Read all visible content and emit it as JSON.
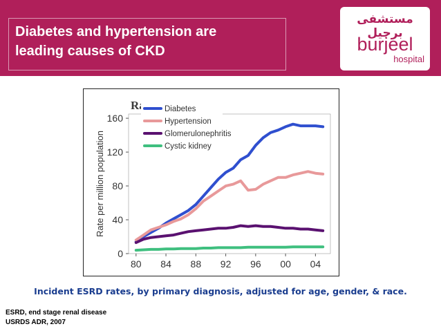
{
  "header": {
    "title_line1": "Diabetes and hypertension are",
    "title_line2": "leading causes of CKD",
    "logo_arabic": "مستشفى برجيل",
    "logo_name": "burjeel",
    "logo_sub": "hospital"
  },
  "chart_data": {
    "type": "line",
    "title": "Ra",
    "ylabel": "Rate per million population",
    "xlabel": "",
    "x_ticks": [
      "80",
      "84",
      "88",
      "92",
      "96",
      "00",
      "04"
    ],
    "y_ticks": [
      "0",
      "40",
      "80",
      "120",
      "160"
    ],
    "ylim": [
      0,
      165
    ],
    "xlim": [
      1979,
      2006
    ],
    "grid": false,
    "legend_position": "top-left",
    "x": [
      1980,
      1981,
      1982,
      1983,
      1984,
      1985,
      1986,
      1987,
      1988,
      1989,
      1990,
      1991,
      1992,
      1993,
      1994,
      1995,
      1996,
      1997,
      1998,
      1999,
      2000,
      2001,
      2002,
      2003,
      2004,
      2005
    ],
    "series": [
      {
        "name": "Diabetes",
        "color": "#2f4fcf",
        "values": [
          14,
          20,
          25,
          30,
          36,
          41,
          46,
          51,
          58,
          68,
          78,
          88,
          96,
          101,
          111,
          116,
          128,
          137,
          143,
          146,
          150,
          153,
          151,
          151,
          151,
          150
        ]
      },
      {
        "name": "Hypertension",
        "color": "#e8999a",
        "values": [
          16,
          22,
          28,
          31,
          34,
          38,
          41,
          46,
          53,
          62,
          68,
          74,
          80,
          82,
          86,
          75,
          76,
          82,
          86,
          90,
          90,
          93,
          95,
          97,
          95,
          94
        ]
      },
      {
        "name": "Glomerulonephritis",
        "color": "#5a1170",
        "values": [
          13,
          17,
          19,
          20,
          21,
          22,
          24,
          26,
          27,
          28,
          29,
          30,
          30,
          31,
          33,
          32,
          33,
          32,
          32,
          31,
          30,
          30,
          29,
          29,
          28,
          27
        ]
      },
      {
        "name": "Cystic kidney",
        "color": "#3fbf7f",
        "values": [
          4,
          4.5,
          5,
          5,
          5.5,
          5.5,
          6,
          6,
          6,
          6.5,
          6.5,
          7,
          7,
          7,
          7,
          7.5,
          7.5,
          7.5,
          7.5,
          7.5,
          7.5,
          8,
          8,
          8,
          8,
          8
        ]
      }
    ]
  },
  "caption": "Incident ESRD rates, by primary diagnosis, adjusted for age, gender, & race.",
  "footnotes": {
    "line1": "ESRD, end stage renal disease",
    "line2": "USRDS ADR, 2007"
  }
}
